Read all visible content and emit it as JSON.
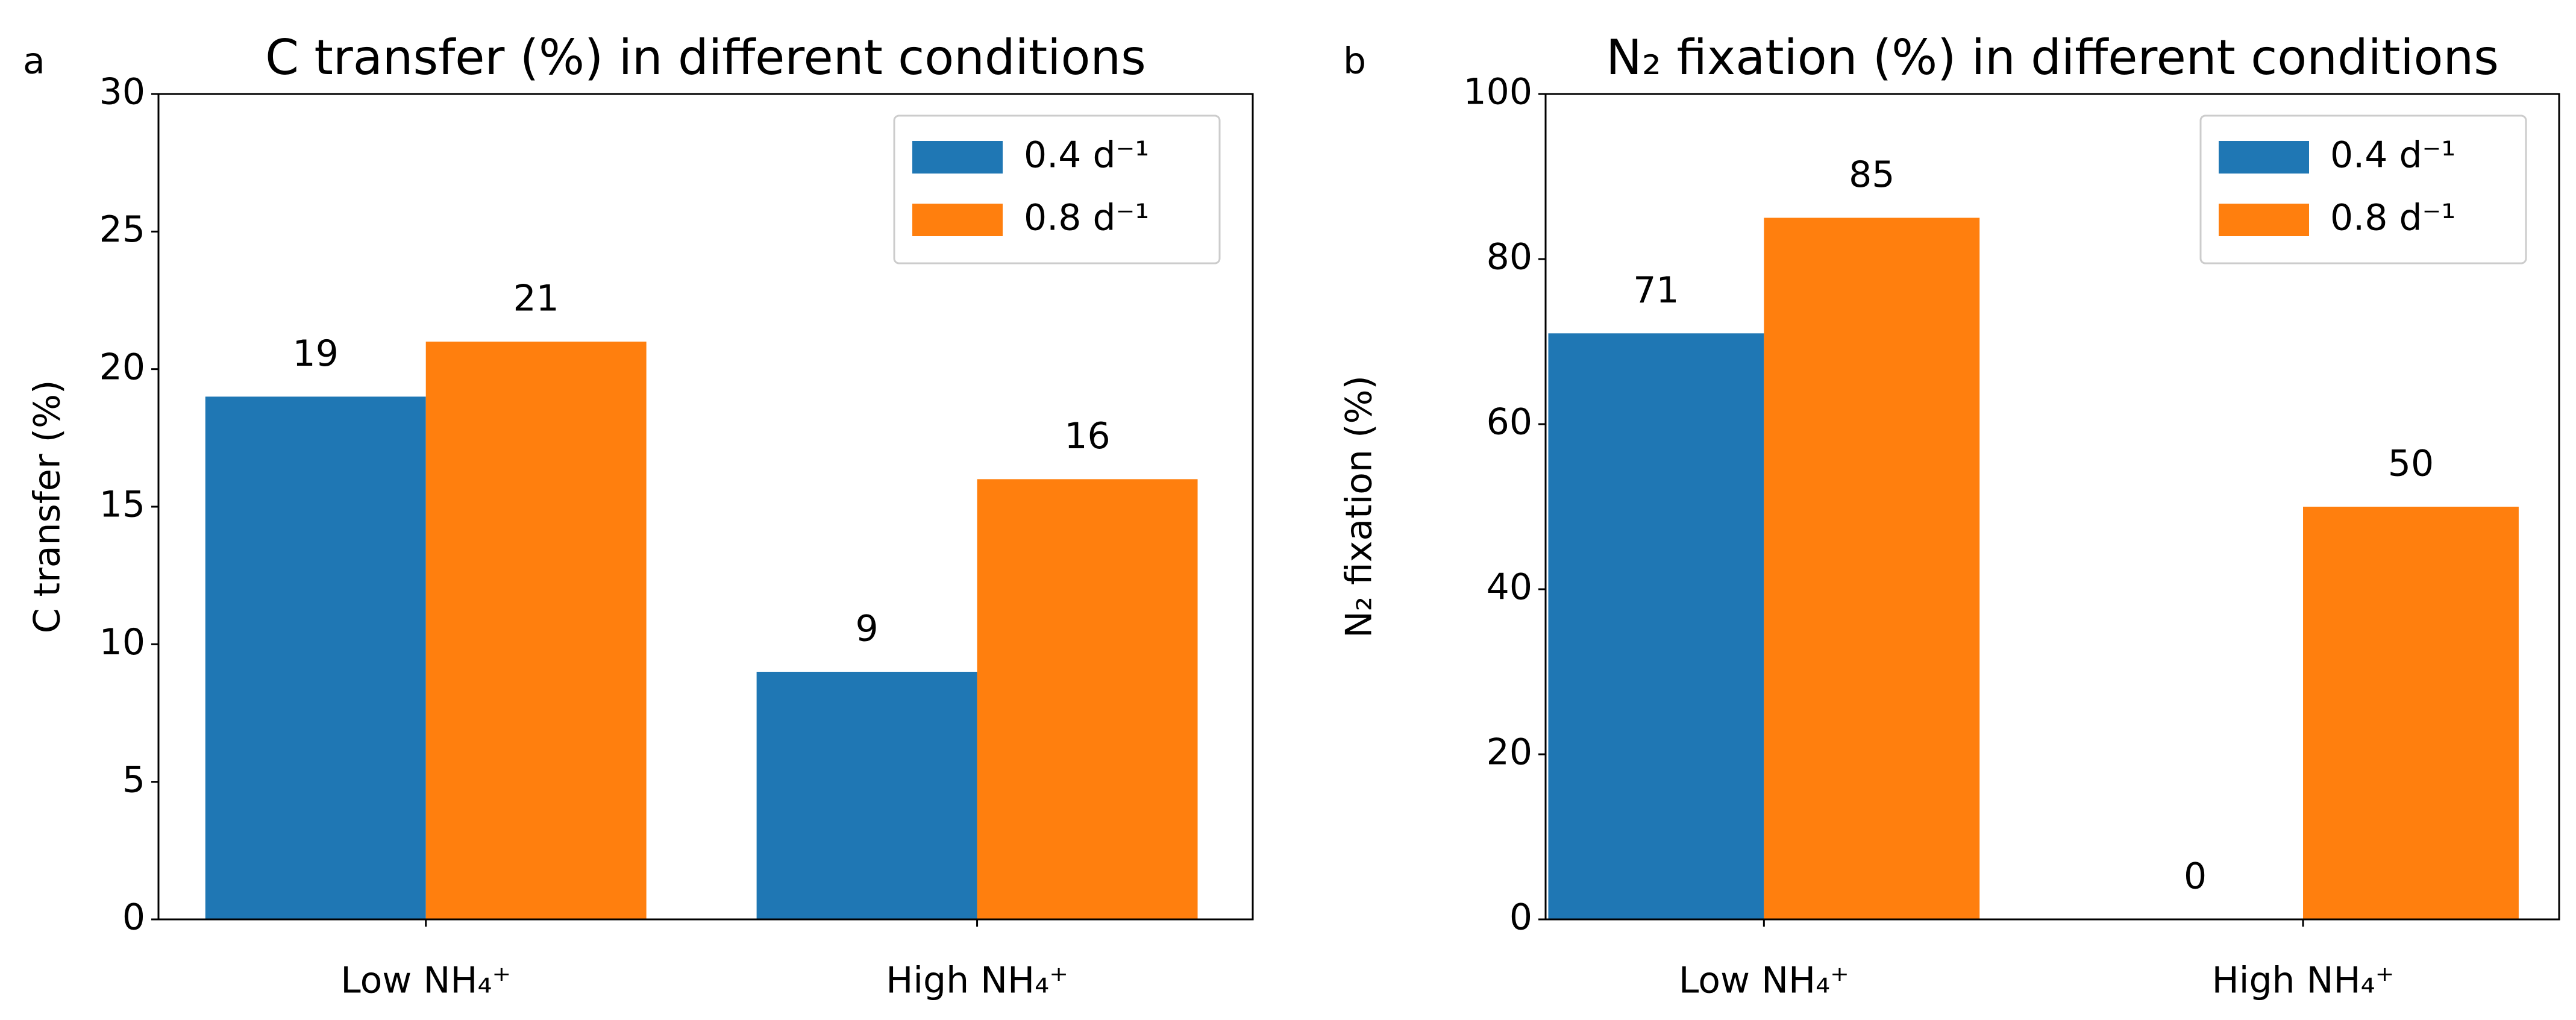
{
  "chart_data": [
    {
      "type": "bar",
      "panel_label": "a",
      "title": "C transfer (%) in different conditions",
      "ylabel": "C transfer (%)",
      "categories": [
        "Low NH₄⁺",
        "High NH₄⁺"
      ],
      "series": [
        {
          "name": "0.4 d⁻¹",
          "color": "#1f77b4",
          "values": [
            19,
            9
          ]
        },
        {
          "name": "0.8 d⁻¹",
          "color": "#ff7f0e",
          "values": [
            21,
            16
          ]
        }
      ],
      "ylim": [
        0,
        30
      ],
      "yticks": [
        0,
        5,
        10,
        15,
        20,
        25,
        30
      ],
      "grid": false,
      "legend": "upper right"
    },
    {
      "type": "bar",
      "panel_label": "b",
      "title": "N₂ fixation (%) in different conditions",
      "ylabel": "N₂ fixation (%)",
      "categories": [
        "Low NH₄⁺",
        "High NH₄⁺"
      ],
      "series": [
        {
          "name": "0.4 d⁻¹",
          "color": "#1f77b4",
          "values": [
            71,
            0
          ]
        },
        {
          "name": "0.8 d⁻¹",
          "color": "#ff7f0e",
          "values": [
            85,
            50
          ]
        }
      ],
      "ylim": [
        0,
        100
      ],
      "yticks": [
        0,
        20,
        40,
        60,
        80,
        100
      ],
      "grid": false,
      "legend": "upper right"
    }
  ]
}
